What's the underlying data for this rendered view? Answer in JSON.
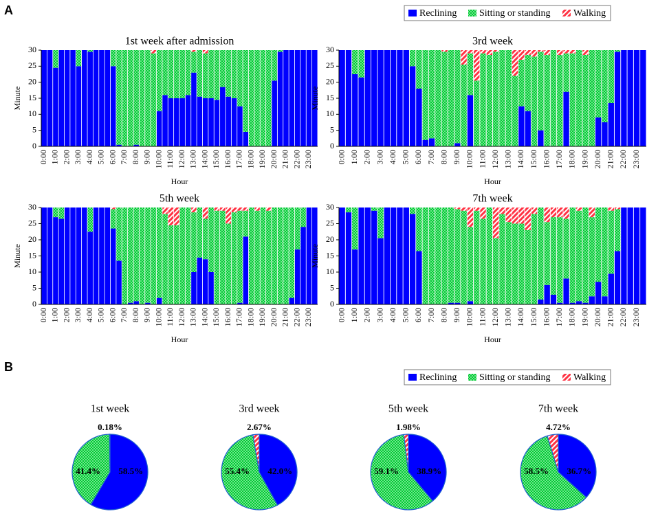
{
  "panels": [
    "A",
    "B"
  ],
  "legend": [
    {
      "name": "Reclining",
      "color": "#0000ff"
    },
    {
      "name": "Sitting or standing",
      "color": "#00cc33"
    },
    {
      "name": "Walking",
      "color": "#ff3344"
    }
  ],
  "chart_data": [
    {
      "type": "bar",
      "title": "1st week after admission",
      "xlabel": "Hour",
      "ylabel": "Minute",
      "categories": [
        "0:00",
        null,
        "1:00",
        null,
        "2:00",
        null,
        "3:00",
        null,
        "4:00",
        null,
        "5:00",
        null,
        "6:00",
        null,
        "7:00",
        null,
        "8:00",
        null,
        "9:00",
        null,
        "10:00",
        null,
        "11:00",
        null,
        "12:00",
        null,
        "13:00",
        null,
        "14:00",
        null,
        "15:00",
        null,
        "16:00",
        null,
        "17:00",
        null,
        "18:00",
        null,
        "19:00",
        null,
        "20:00",
        null,
        "21:00",
        null,
        "22:00",
        null,
        "23:00",
        null
      ],
      "ylim": [
        0,
        30
      ],
      "yticks": [
        0,
        5,
        10,
        15,
        20,
        25,
        30
      ],
      "series": [
        {
          "values": [
            30,
            30,
            24.5,
            30,
            30,
            30,
            25,
            30,
            29.5,
            30,
            30,
            30,
            25,
            0.5,
            0,
            0,
            0.5,
            0,
            0,
            0,
            11,
            16,
            15,
            15,
            15,
            16,
            23,
            15.5,
            15,
            15,
            14.5,
            18.5,
            15.5,
            15,
            12.5,
            4.5,
            0,
            0,
            0,
            0,
            20.5,
            29.5,
            30,
            30,
            30,
            30,
            30,
            30
          ]
        },
        {
          "values": [
            0,
            0,
            5.5,
            0,
            0,
            0,
            5,
            0,
            0.5,
            0,
            0,
            0,
            5,
            29.5,
            30,
            30,
            29.5,
            30,
            30,
            29,
            19,
            14,
            15,
            15,
            15,
            14,
            6.5,
            14.5,
            14,
            15,
            15.5,
            11.5,
            14.5,
            15,
            17.5,
            25.5,
            30,
            30,
            30,
            30,
            9.5,
            0.5,
            0,
            0,
            0,
            0,
            0,
            0
          ]
        },
        {
          "values": [
            0,
            0,
            0,
            0,
            0,
            0,
            0,
            0,
            0,
            0,
            0,
            0,
            0,
            0,
            0,
            0,
            0,
            0,
            0,
            1,
            0,
            0,
            0,
            0,
            0,
            0,
            0.5,
            0,
            1,
            0,
            0,
            0,
            0,
            0,
            0,
            0,
            0,
            0,
            0,
            0,
            0,
            0,
            0,
            0,
            0,
            0,
            0,
            0
          ]
        }
      ]
    },
    {
      "type": "bar",
      "title": "3rd week",
      "xlabel": "Hour",
      "ylabel": "Minute",
      "categories": [
        "0:00",
        null,
        "1:00",
        null,
        "2:00",
        null,
        "3:00",
        null,
        "4:00",
        null,
        "5:00",
        null,
        "6:00",
        null,
        "7:00",
        null,
        "8:00",
        null,
        "9:00",
        null,
        "10:00",
        null,
        "11:00",
        null,
        "12:00",
        null,
        "13:00",
        null,
        "14:00",
        null,
        "15:00",
        null,
        "16:00",
        null,
        "17:00",
        null,
        "18:00",
        null,
        "19:00",
        null,
        "20:00",
        null,
        "21:00",
        null,
        "22:00",
        null,
        "23:00",
        null
      ],
      "ylim": [
        0,
        30
      ],
      "yticks": [
        0,
        5,
        10,
        15,
        20,
        25,
        30
      ],
      "series": [
        {
          "values": [
            30,
            30,
            22.5,
            21.5,
            30,
            30,
            30,
            30,
            30,
            30,
            30,
            25,
            18,
            2,
            2.5,
            0,
            0,
            0,
            1,
            0,
            16,
            0,
            0,
            0,
            0,
            0,
            0,
            0,
            12.5,
            11,
            0,
            5,
            0,
            0,
            0,
            17,
            0,
            0,
            0,
            0,
            9,
            7.5,
            13.5,
            29.5,
            30,
            30,
            30,
            30
          ]
        },
        {
          "values": [
            0,
            0,
            7.5,
            8.5,
            0,
            0,
            0,
            0,
            0,
            0,
            0,
            5,
            12,
            28,
            27.5,
            30,
            29.5,
            30,
            29,
            25.5,
            13,
            20.5,
            29,
            28.5,
            29.5,
            30,
            30,
            22,
            14.5,
            17.5,
            28,
            24.5,
            28.5,
            30,
            28.5,
            12,
            29,
            30,
            28.5,
            30,
            21,
            22.5,
            16.5,
            0.5,
            0,
            0,
            0,
            0
          ]
        },
        {
          "values": [
            0,
            0,
            0,
            0,
            0,
            0,
            0,
            0,
            0,
            0,
            0,
            0,
            0,
            0,
            0,
            0,
            0.5,
            0,
            0,
            4.5,
            1,
            9.5,
            1,
            1.5,
            0.5,
            0,
            0,
            8,
            3,
            1.5,
            2,
            0.5,
            1.5,
            0,
            1.5,
            1,
            1,
            0,
            1.5,
            0,
            0,
            0,
            0,
            0,
            0,
            0,
            0,
            0
          ]
        }
      ]
    },
    {
      "type": "bar",
      "title": "5th week",
      "xlabel": "Hour",
      "ylabel": "Minute",
      "categories": [
        "0:00",
        null,
        "1:00",
        null,
        "2:00",
        null,
        "3:00",
        null,
        "4:00",
        null,
        "5:00",
        null,
        "6:00",
        null,
        "7:00",
        null,
        "8:00",
        null,
        "9:00",
        null,
        "10:00",
        null,
        "11:00",
        null,
        "12:00",
        null,
        "13:00",
        null,
        "14:00",
        null,
        "15:00",
        null,
        "16:00",
        null,
        "17:00",
        null,
        "18:00",
        null,
        "19:00",
        null,
        "20:00",
        null,
        "21:00",
        null,
        "22:00",
        null,
        "23:00",
        null
      ],
      "ylim": [
        0,
        30
      ],
      "yticks": [
        0,
        5,
        10,
        15,
        20,
        25,
        30
      ],
      "series": [
        {
          "values": [
            30,
            30,
            27,
            26.5,
            30,
            30,
            30,
            30,
            22.5,
            30,
            30,
            30,
            23.5,
            13.5,
            0,
            0.5,
            1,
            0,
            0.5,
            0,
            2,
            0,
            0,
            0,
            0,
            0,
            10,
            14.5,
            14,
            10,
            0,
            0,
            0,
            0,
            0.5,
            21,
            0,
            0,
            0,
            0,
            0,
            0,
            0,
            2,
            17,
            24,
            30,
            30
          ]
        },
        {
          "values": [
            0,
            0,
            3,
            3.5,
            0,
            0,
            0,
            0,
            7.5,
            0,
            0,
            0,
            6,
            16.5,
            30,
            29.5,
            29,
            30,
            29.5,
            30,
            28,
            28,
            24.5,
            24.5,
            30,
            30,
            18.5,
            15.5,
            12.5,
            20,
            29,
            29,
            25,
            28.5,
            28.5,
            8,
            30,
            29,
            30,
            29,
            30,
            30,
            30,
            28,
            13,
            6,
            0,
            0
          ]
        },
        {
          "values": [
            0,
            0,
            0,
            0,
            0,
            0,
            0,
            0,
            0,
            0,
            0,
            0,
            0.5,
            0,
            0,
            0,
            0,
            0,
            0,
            0,
            0,
            2,
            5.5,
            5.5,
            0,
            0,
            1.5,
            0,
            3.5,
            0,
            1,
            1,
            5,
            1.5,
            1,
            1,
            0,
            1,
            0,
            1,
            0,
            0,
            0,
            0,
            0,
            0,
            0,
            0
          ]
        }
      ]
    },
    {
      "type": "bar",
      "title": "7th week",
      "xlabel": "Hour",
      "ylabel": "Minute",
      "categories": [
        "0:00",
        null,
        "1:00",
        null,
        "2:00",
        null,
        "3:00",
        null,
        "4:00",
        null,
        "5:00",
        null,
        "6:00",
        null,
        "7:00",
        null,
        "8:00",
        null,
        "9:00",
        null,
        "10:00",
        null,
        "11:00",
        null,
        "12:00",
        null,
        "13:00",
        null,
        "14:00",
        null,
        "15:00",
        null,
        "16:00",
        null,
        "17:00",
        null,
        "18:00",
        null,
        "19:00",
        null,
        "20:00",
        null,
        "21:00",
        null,
        "22:00",
        null,
        "23:00",
        null
      ],
      "ylim": [
        0,
        30
      ],
      "yticks": [
        0,
        5,
        10,
        15,
        20,
        25,
        30
      ],
      "series": [
        {
          "values": [
            30,
            28.5,
            17,
            30,
            30,
            29,
            20.5,
            30,
            30,
            30,
            30,
            28,
            16.5,
            0,
            0,
            0,
            0,
            0.5,
            0.5,
            0,
            1,
            0,
            0,
            0,
            0,
            0,
            0,
            0,
            0,
            0,
            0,
            1.5,
            6,
            3,
            0.5,
            8,
            0.5,
            1,
            0.5,
            2.5,
            7,
            2.5,
            9.5,
            16.5,
            30,
            30,
            30,
            30
          ]
        },
        {
          "values": [
            0,
            1.5,
            13,
            0,
            0,
            1,
            9.5,
            0,
            0,
            0,
            0,
            2,
            13.5,
            30,
            30,
            30,
            30,
            29.5,
            29,
            29,
            23,
            29,
            26.5,
            30,
            20.5,
            28,
            25.5,
            25,
            25,
            23,
            28,
            28.5,
            19.5,
            24,
            26.5,
            18.5,
            29.5,
            28,
            29.5,
            24.5,
            23,
            27.5,
            19.5,
            13,
            0,
            0,
            0,
            0
          ]
        },
        {
          "values": [
            0,
            0,
            0,
            0,
            0,
            0,
            0,
            0,
            0,
            0,
            0,
            0,
            0,
            0,
            0,
            0,
            0,
            0,
            0.5,
            1,
            6,
            1,
            3.5,
            0,
            9.5,
            2,
            4.5,
            5,
            5,
            7,
            2,
            0,
            4.5,
            3,
            3,
            3.5,
            0,
            1,
            0,
            3,
            0,
            0,
            1,
            0.5,
            0,
            0,
            0,
            0
          ]
        }
      ]
    },
    {
      "type": "pie",
      "title": "1st week",
      "values": [
        58.5,
        41.4,
        0.18
      ],
      "value_labels": [
        "58.5%",
        "41.4%",
        "0.18%"
      ]
    },
    {
      "type": "pie",
      "title": "3rd week",
      "values": [
        42.0,
        55.4,
        2.67
      ],
      "value_labels": [
        "42.0%",
        "55.4%",
        "2.67%"
      ]
    },
    {
      "type": "pie",
      "title": "5th week",
      "values": [
        38.9,
        59.1,
        1.98
      ],
      "value_labels": [
        "38.9%",
        "59.1%",
        "1.98%"
      ]
    },
    {
      "type": "pie",
      "title": "7th week",
      "values": [
        36.7,
        58.5,
        4.72
      ],
      "value_labels": [
        "36.7%",
        "58.5%",
        "4.72%"
      ]
    }
  ]
}
